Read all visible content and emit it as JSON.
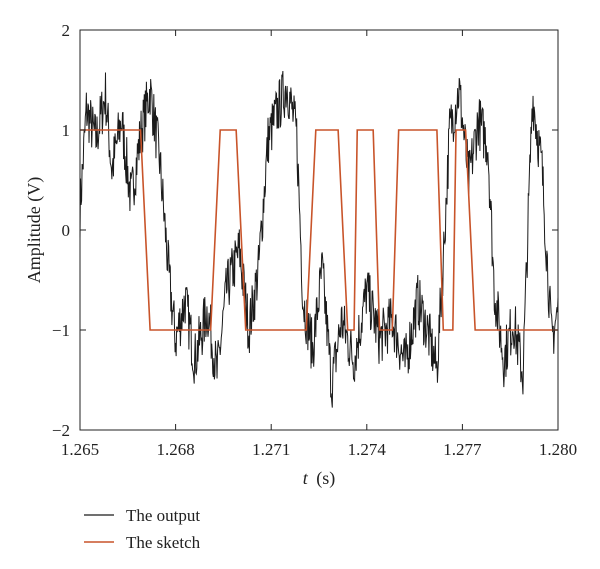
{
  "chart_data": {
    "type": "line",
    "title": "",
    "xlabel_italic": "t",
    "xlabel_unit": "(s)",
    "ylabel": "Amplitude (V)",
    "xlim": [
      1.265,
      1.28
    ],
    "ylim": [
      -2,
      2
    ],
    "xticks": [
      "1.265",
      "1.268",
      "1.271",
      "1.274",
      "1.277",
      "1.280"
    ],
    "xtick_values": [
      1.265,
      1.268,
      1.271,
      1.274,
      1.277,
      1.28
    ],
    "yticks": [
      "2",
      "1",
      "0",
      "−1",
      "−2"
    ],
    "ytick_values": [
      2,
      1,
      0,
      -1,
      -2
    ],
    "grid": false,
    "legend_position": "bottom-left",
    "series": [
      {
        "name": "The output",
        "color": "#1a1a1a",
        "description_points": [
          [
            1.265,
            0.2
          ],
          [
            1.2652,
            1.2
          ],
          [
            1.2655,
            0.9
          ],
          [
            1.2658,
            1.35
          ],
          [
            1.266,
            0.6
          ],
          [
            1.2663,
            1.1
          ],
          [
            1.2666,
            0.3
          ],
          [
            1.2669,
            0.95
          ],
          [
            1.2672,
            1.4
          ],
          [
            1.2675,
            0.7
          ],
          [
            1.2678,
            -0.5
          ],
          [
            1.268,
            -1.1
          ],
          [
            1.2683,
            -0.7
          ],
          [
            1.2686,
            -1.3
          ],
          [
            1.269,
            -0.8
          ],
          [
            1.2693,
            -1.45
          ],
          [
            1.2696,
            -0.6
          ],
          [
            1.27,
            -0.2
          ],
          [
            1.2703,
            -1.0
          ],
          [
            1.2706,
            -0.4
          ],
          [
            1.2709,
            0.9
          ],
          [
            1.2712,
            1.2
          ],
          [
            1.2715,
            1.45
          ],
          [
            1.2718,
            0.95
          ],
          [
            1.272,
            -0.7
          ],
          [
            1.2723,
            -1.2
          ],
          [
            1.2726,
            -0.4
          ],
          [
            1.2729,
            -1.55
          ],
          [
            1.2732,
            -0.9
          ],
          [
            1.2736,
            -1.3
          ],
          [
            1.274,
            -0.6
          ],
          [
            1.2744,
            -1.1
          ],
          [
            1.2748,
            -0.9
          ],
          [
            1.2752,
            -1.35
          ],
          [
            1.2756,
            -0.7
          ],
          [
            1.2759,
            -1.0
          ],
          [
            1.2762,
            -1.4
          ],
          [
            1.2764,
            -0.3
          ],
          [
            1.2766,
            1.0
          ],
          [
            1.2769,
            1.4
          ],
          [
            1.2772,
            0.5
          ],
          [
            1.2775,
            1.1
          ],
          [
            1.2778,
            0.85
          ],
          [
            1.278,
            -0.6
          ],
          [
            1.2783,
            -1.3
          ],
          [
            1.2786,
            -0.9
          ],
          [
            1.2789,
            -1.45
          ],
          [
            1.2792,
            1.35
          ],
          [
            1.2795,
            0.6
          ],
          [
            1.2798,
            -1.1
          ],
          [
            1.28,
            -0.8
          ]
        ]
      },
      {
        "name": "The sketch",
        "color": "#c8542a",
        "points": [
          [
            1.265,
            1
          ],
          [
            1.2669,
            1
          ],
          [
            1.2672,
            -1
          ],
          [
            1.2691,
            -1
          ],
          [
            1.2694,
            1
          ],
          [
            1.2699,
            1
          ],
          [
            1.2702,
            -1
          ],
          [
            1.2721,
            -1
          ],
          [
            1.2724,
            1
          ],
          [
            1.2731,
            1
          ],
          [
            1.2734,
            -1
          ],
          [
            1.2736,
            -1
          ],
          [
            1.2737,
            1
          ],
          [
            1.2742,
            1
          ],
          [
            1.2744,
            -1
          ],
          [
            1.2748,
            -1
          ],
          [
            1.275,
            1
          ],
          [
            1.2762,
            1
          ],
          [
            1.2764,
            -1
          ],
          [
            1.2767,
            -1
          ],
          [
            1.2768,
            1
          ],
          [
            1.2771,
            1
          ],
          [
            1.2774,
            -1
          ],
          [
            1.28,
            -1
          ]
        ]
      }
    ]
  }
}
